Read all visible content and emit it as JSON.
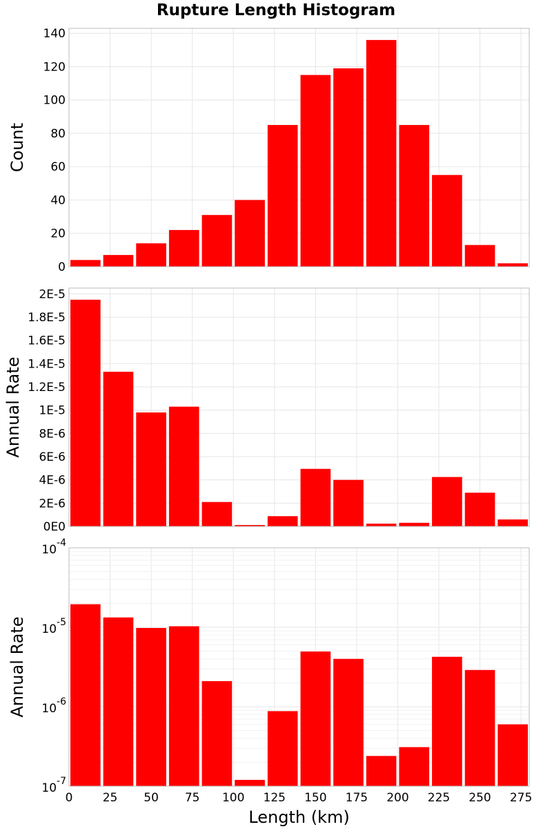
{
  "title": "Rupture Length Histogram",
  "colors": {
    "bar": "#ff0000",
    "grid": "#e6e6e6",
    "frame": "#bbbbbb"
  },
  "chart_data": [
    {
      "type": "bar",
      "x": [
        10,
        30,
        50,
        70,
        90,
        110,
        130,
        150,
        170,
        190,
        210,
        230,
        250,
        270
      ],
      "values": [
        4,
        7,
        14,
        22,
        31,
        40,
        85,
        115,
        119,
        136,
        85,
        55,
        13,
        2
      ],
      "ylabel": "Count",
      "ylim": [
        0,
        143
      ],
      "xlim": [
        0,
        280
      ],
      "yticks": [
        "0",
        "20",
        "40",
        "60",
        "80",
        "100",
        "120",
        "140"
      ],
      "grid": true
    },
    {
      "type": "bar",
      "x": [
        10,
        30,
        50,
        70,
        90,
        110,
        130,
        150,
        170,
        190,
        210,
        230,
        250,
        270
      ],
      "values": [
        1.95e-05,
        1.33e-05,
        9.8e-06,
        1.03e-05,
        2.1e-06,
        1.2e-07,
        8.8e-07,
        4.95e-06,
        4e-06,
        2.4e-07,
        3.1e-07,
        4.25e-06,
        2.9e-06,
        6e-07
      ],
      "ylabel": "Annual Rate",
      "ylim": [
        0,
        2.05e-05
      ],
      "xlim": [
        0,
        280
      ],
      "yticks": [
        "0E0",
        "2E-6",
        "4E-6",
        "6E-6",
        "8E-6",
        "1E-5",
        "1.2E-5",
        "1.4E-5",
        "1.6E-5",
        "1.8E-5",
        "2E-5"
      ],
      "grid": true
    },
    {
      "type": "bar",
      "x": [
        10,
        30,
        50,
        70,
        90,
        110,
        130,
        150,
        170,
        190,
        210,
        230,
        250,
        270
      ],
      "values": [
        1.95e-05,
        1.33e-05,
        9.8e-06,
        1.03e-05,
        2.1e-06,
        1.2e-07,
        8.8e-07,
        4.95e-06,
        4e-06,
        2.4e-07,
        3.1e-07,
        4.25e-06,
        2.9e-06,
        6e-07
      ],
      "ylabel": "Annual Rate",
      "xlabel": "Length (km)",
      "yscale": "log",
      "ylim": [
        1e-07,
        0.0001
      ],
      "xlim": [
        0,
        280
      ],
      "ytick_bases": [
        "10",
        "10",
        "10",
        "10"
      ],
      "ytick_exponents": [
        "-7",
        "-6",
        "-5",
        "-4"
      ],
      "xticks": [
        "0",
        "25",
        "50",
        "75",
        "100",
        "125",
        "150",
        "175",
        "200",
        "225",
        "250",
        "275"
      ],
      "grid": true
    }
  ]
}
